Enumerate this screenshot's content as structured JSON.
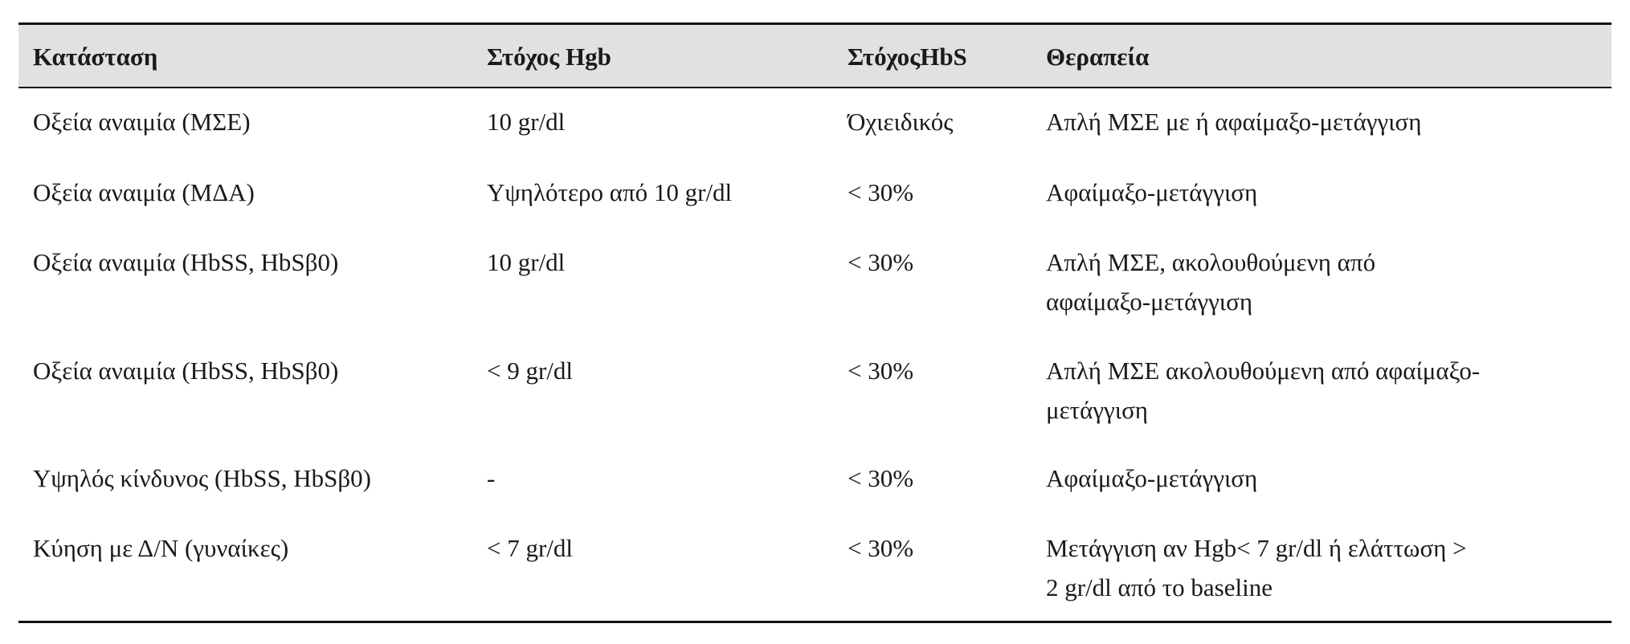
{
  "table": {
    "headers": [
      "Κατάσταση",
      "Στόχος Hgb",
      "ΣτόχοςHbS",
      "Θεραπεία"
    ],
    "rows": [
      {
        "condition": "Οξεία αναιμία (ΜΣΕ)",
        "hgb": "10 gr/dl",
        "hbs": "Όχιειδικός",
        "therapy": [
          "Απλή ΜΣΕ με ή αφαίμαξο-μετάγγιση"
        ]
      },
      {
        "condition": "Οξεία αναιμία (ΜΔΑ)",
        "hgb": "Υψηλότερο από 10 gr/dl",
        "hbs": "< 30%",
        "therapy": [
          "Αφαίμαξο-μετάγγιση"
        ]
      },
      {
        "condition": "Οξεία αναιμία (HbSS, HbSβ0)",
        "hgb": "10 gr/dl",
        "hbs": "< 30%",
        "therapy": [
          "Απλή ΜΣΕ, ακολουθούμενη από",
          "αφαίμαξο-μετάγγιση"
        ]
      },
      {
        "condition": "Οξεία αναιμία (HbSS, HbSβ0)",
        "hgb": "< 9 gr/dl",
        "hbs": "< 30%",
        "therapy": [
          "Απλή ΜΣΕ ακολουθούμενη από αφαίμαξο-",
          "μετάγγιση"
        ]
      },
      {
        "condition": "Υψηλός κίνδυνος (HbSS, HbSβ0)",
        "hgb": "-",
        "hbs": "< 30%",
        "therapy": [
          "Αφαίμαξο-μετάγγιση"
        ]
      },
      {
        "condition": "Κύηση με Δ/Ν (γυναίκες)",
        "hgb": "< 7 gr/dl",
        "hbs": "< 30%",
        "therapy": [
          "Μετάγγιση αν Hgb< 7 gr/dl ή ελάττωση >",
          "2 gr/dl από το baseline"
        ]
      }
    ]
  }
}
